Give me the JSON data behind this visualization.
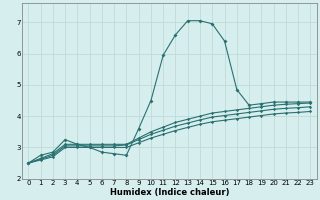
{
  "title": "",
  "xlabel": "Humidex (Indice chaleur)",
  "ylabel": "",
  "background_color": "#d6eeee",
  "grid_color": "#c0dada",
  "line_color": "#2a7070",
  "xlim": [
    -0.5,
    23.5
  ],
  "ylim": [
    2.0,
    7.6
  ],
  "yticks": [
    2,
    3,
    4,
    5,
    6,
    7
  ],
  "xticks": [
    0,
    1,
    2,
    3,
    4,
    5,
    6,
    7,
    8,
    9,
    10,
    11,
    12,
    13,
    14,
    15,
    16,
    17,
    18,
    19,
    20,
    21,
    22,
    23
  ],
  "line1_x": [
    0,
    1,
    2,
    3,
    4,
    5,
    6,
    7,
    8,
    9,
    10,
    11,
    12,
    13,
    14,
    15,
    16,
    17,
    18,
    19,
    20,
    21,
    22,
    23
  ],
  "line1_y": [
    2.5,
    2.75,
    2.85,
    3.25,
    3.1,
    3.0,
    2.85,
    2.8,
    2.75,
    3.6,
    4.5,
    5.95,
    6.6,
    7.05,
    7.05,
    6.95,
    6.4,
    4.85,
    4.35,
    4.4,
    4.45,
    4.45,
    4.45,
    4.45
  ],
  "line2_x": [
    0,
    1,
    2,
    3,
    4,
    5,
    6,
    7,
    8,
    9,
    10,
    11,
    12,
    13,
    14,
    15,
    16,
    17,
    18,
    19,
    20,
    21,
    22,
    23
  ],
  "line2_y": [
    2.5,
    2.65,
    2.8,
    3.1,
    3.1,
    3.1,
    3.1,
    3.1,
    3.1,
    3.3,
    3.5,
    3.65,
    3.8,
    3.9,
    4.0,
    4.1,
    4.15,
    4.2,
    4.25,
    4.3,
    4.35,
    4.38,
    4.4,
    4.42
  ],
  "line3_x": [
    0,
    1,
    2,
    3,
    4,
    5,
    6,
    7,
    8,
    9,
    10,
    11,
    12,
    13,
    14,
    15,
    16,
    17,
    18,
    19,
    20,
    21,
    22,
    23
  ],
  "line3_y": [
    2.5,
    2.62,
    2.75,
    3.05,
    3.05,
    3.05,
    3.05,
    3.05,
    3.08,
    3.25,
    3.42,
    3.55,
    3.68,
    3.78,
    3.88,
    3.97,
    4.02,
    4.07,
    4.12,
    4.17,
    4.22,
    4.25,
    4.27,
    4.3
  ],
  "line4_x": [
    0,
    1,
    2,
    3,
    4,
    5,
    6,
    7,
    8,
    9,
    10,
    11,
    12,
    13,
    14,
    15,
    16,
    17,
    18,
    19,
    20,
    21,
    22,
    23
  ],
  "line4_y": [
    2.5,
    2.6,
    2.7,
    3.0,
    3.0,
    3.0,
    3.0,
    3.0,
    3.0,
    3.15,
    3.3,
    3.42,
    3.54,
    3.64,
    3.74,
    3.82,
    3.87,
    3.92,
    3.97,
    4.02,
    4.07,
    4.1,
    4.12,
    4.15
  ],
  "marker_size": 2.0,
  "line_width": 0.8,
  "xlabel_fontsize": 6.0,
  "tick_fontsize": 5.0
}
